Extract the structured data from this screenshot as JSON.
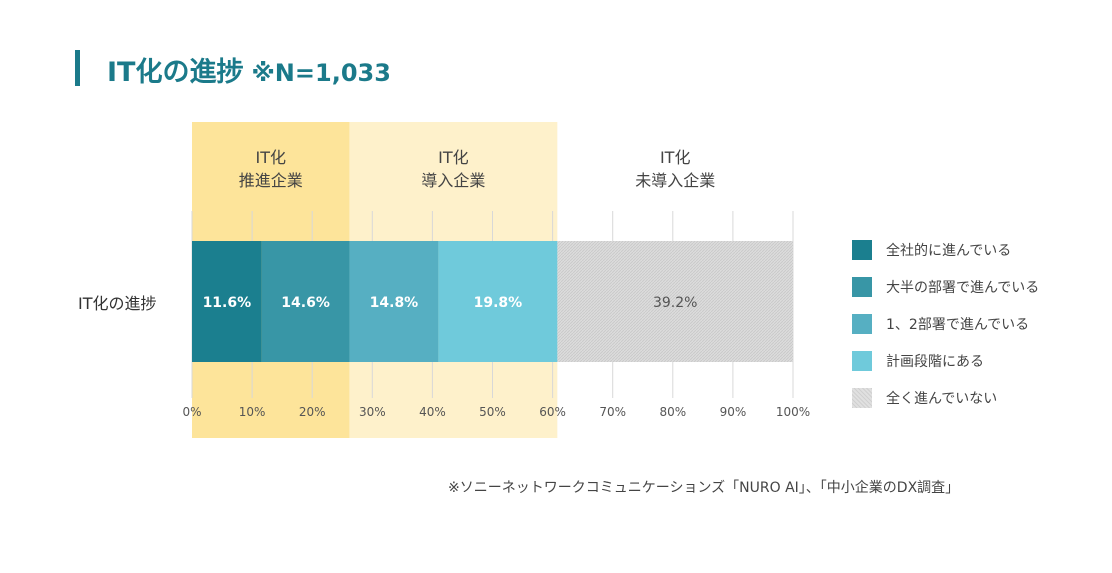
{
  "chart_data": {
    "type": "bar",
    "orientation": "horizontal-stacked",
    "title": "IT化の進捗",
    "subtitle": "※N=1,033",
    "categories": [
      "IT化の進捗"
    ],
    "series": [
      {
        "name": "全社的に進んでいる",
        "values": [
          11.6
        ],
        "label": "11.6%",
        "color": "#1b7f8f"
      },
      {
        "name": "大半の部署で進んでいる",
        "values": [
          14.6
        ],
        "label": "14.6%",
        "color": "#3896a6"
      },
      {
        "name": "1、2部署で進んでいる",
        "values": [
          14.8
        ],
        "label": "14.8%",
        "color": "#56afc2"
      },
      {
        "name": "計画段階にある",
        "values": [
          19.8
        ],
        "label": "19.8%",
        "color": "#6fcadb"
      },
      {
        "name": "全く進んでいない",
        "values": [
          39.2
        ],
        "label": "39.2%",
        "color": "#d9d9d9"
      }
    ],
    "xlim": [
      0,
      100
    ],
    "xticks": [
      "0%",
      "10%",
      "20%",
      "30%",
      "40%",
      "50%",
      "60%",
      "70%",
      "80%",
      "90%",
      "100%"
    ],
    "groups": [
      {
        "line1": "IT化",
        "line2": "推進企業",
        "range": [
          0,
          26.2
        ],
        "color": "#fde49a"
      },
      {
        "line1": "IT化",
        "line2": "導入企業",
        "range": [
          26.2,
          60.8
        ],
        "color": "#fef1cb"
      },
      {
        "line1": "IT化",
        "line2": "未導入企業",
        "range": [
          60.8,
          100
        ],
        "color": "#ffffff"
      }
    ],
    "legend_position": "right",
    "grid": true,
    "source": "※ソニーネットワークコミュニケーションズ「NURO AI」、「中小企業のDX調査」"
  }
}
